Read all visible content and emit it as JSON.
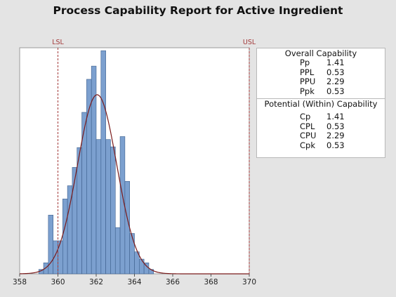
{
  "chart_data": {
    "type": "bar",
    "title": "Process Capability Report for Active Ingredient",
    "xlim": [
      358,
      370
    ],
    "x_ticks": [
      "358",
      "360",
      "362",
      "364",
      "366",
      "368",
      "370"
    ],
    "bin_width": 0.25,
    "bins": [
      {
        "x0": 359.0,
        "h": 6
      },
      {
        "x0": 359.25,
        "h": 15
      },
      {
        "x0": 359.5,
        "h": 80
      },
      {
        "x0": 359.75,
        "h": 45
      },
      {
        "x0": 360.0,
        "h": 45
      },
      {
        "x0": 360.25,
        "h": 102
      },
      {
        "x0": 360.5,
        "h": 120
      },
      {
        "x0": 360.75,
        "h": 145
      },
      {
        "x0": 361.0,
        "h": 172
      },
      {
        "x0": 361.25,
        "h": 220
      },
      {
        "x0": 361.5,
        "h": 265
      },
      {
        "x0": 361.75,
        "h": 283
      },
      {
        "x0": 362.0,
        "h": 183
      },
      {
        "x0": 362.25,
        "h": 304
      },
      {
        "x0": 362.5,
        "h": 183
      },
      {
        "x0": 362.75,
        "h": 173
      },
      {
        "x0": 363.0,
        "h": 63
      },
      {
        "x0": 363.25,
        "h": 187
      },
      {
        "x0": 363.5,
        "h": 126
      },
      {
        "x0": 363.75,
        "h": 55
      },
      {
        "x0": 364.0,
        "h": 30
      },
      {
        "x0": 364.25,
        "h": 20
      },
      {
        "x0": 364.5,
        "h": 15
      },
      {
        "x0": 364.75,
        "h": 6
      }
    ],
    "normal_curve": {
      "mean": 362.05,
      "sd": 1.03,
      "peak": 244
    },
    "ylim": [
      0,
      308
    ],
    "lsl": {
      "label": "LSL",
      "x": 360.0
    },
    "usl": {
      "label": "USL",
      "x": 370.0
    },
    "colors": {
      "bar": "#7ca0cf",
      "bar_edge": "#3d5f8c",
      "curve": "#7a1a1a",
      "spec": "#a33a3a",
      "plot_bg": "#ffffff"
    }
  },
  "capability": {
    "overall_title": "Overall Capability",
    "overall": [
      {
        "name": "Pp",
        "value": "1.41"
      },
      {
        "name": "PPL",
        "value": "0.53"
      },
      {
        "name": "PPU",
        "value": "2.29"
      },
      {
        "name": "Ppk",
        "value": "0.53"
      }
    ],
    "potential_title": "Potential (Within) Capability",
    "potential": [
      {
        "name": "Cp",
        "value": "1.41"
      },
      {
        "name": "CPL",
        "value": "0.53"
      },
      {
        "name": "CPU",
        "value": "2.29"
      },
      {
        "name": "Cpk",
        "value": "0.53"
      }
    ]
  }
}
